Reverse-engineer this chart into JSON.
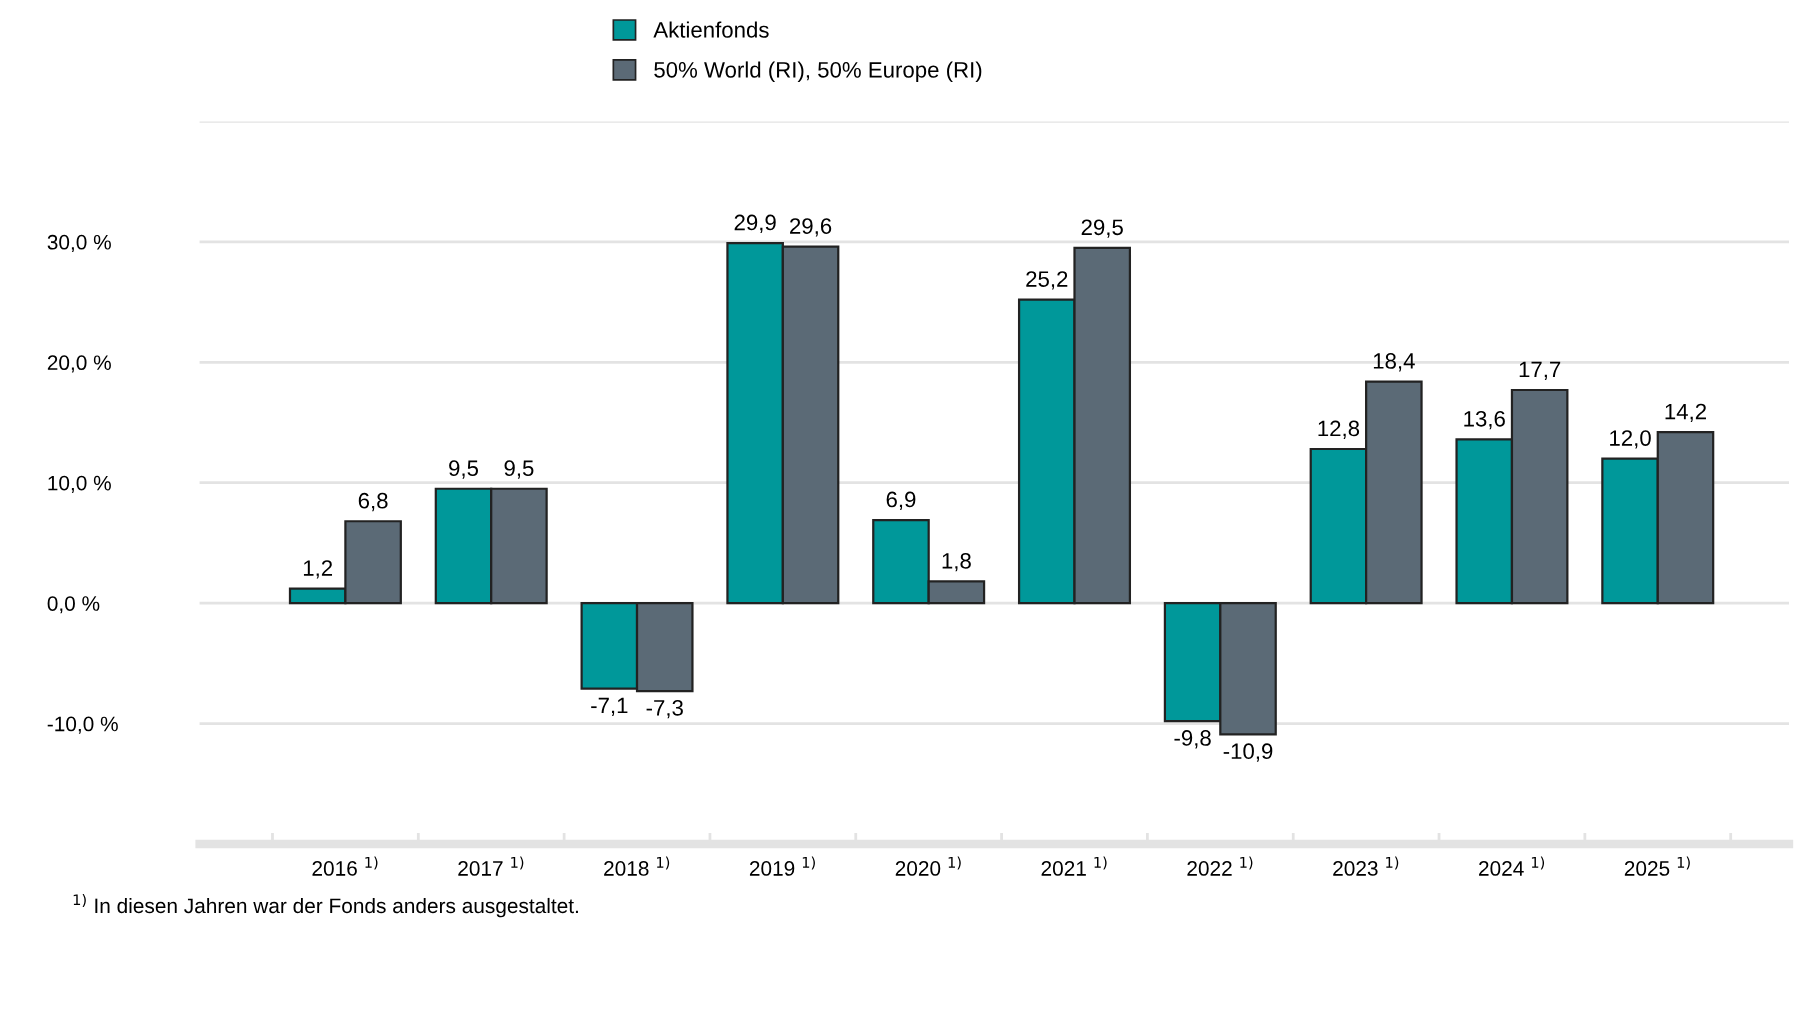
{
  "chart_data": {
    "type": "bar",
    "categories": [
      "2016 $^{1)}$",
      "2017 $^{1)}$",
      "2018 $^{1)}$",
      "2019 $^{1)}$",
      "2020 $^{1)}$",
      "2021 $^{1)}$",
      "2022 $^{1)}$",
      "2023 $^{1)}$",
      "2024 $^{1)}$",
      "2025 $^{1)}$"
    ],
    "series": [
      {
        "name": "Aktienfonds",
        "color": "#00989a",
        "values": [
          1.2,
          9.5,
          -7.1,
          29.9,
          6.9,
          25.2,
          -9.8,
          12.8,
          13.6,
          12.0
        ],
        "value_labels": [
          "1,2",
          "9,5",
          "-7,1",
          "29,9",
          "6,9",
          "25,2",
          "-9,8",
          "12,8",
          "13,6",
          "12,0"
        ]
      },
      {
        "name": "50% World (RI), 50% Europe (RI)",
        "color": "#5b6a76",
        "values": [
          6.8,
          9.5,
          -7.3,
          29.6,
          1.8,
          29.5,
          -10.9,
          18.4,
          17.7,
          14.2
        ],
        "value_labels": [
          "6,8",
          "9,5",
          "-7,3",
          "29,6",
          "1,8",
          "29,5",
          "-10,9",
          "18,4",
          "17,7",
          "14,2"
        ]
      }
    ],
    "ylim": [
      -20,
      40
    ],
    "yticks": [
      {
        "value": -20,
        "label": null
      },
      {
        "value": -10,
        "label": "-10,0 %"
      },
      {
        "value": 0,
        "label": "0,0 %"
      },
      {
        "value": 10,
        "label": "10,0 %"
      },
      {
        "value": 20,
        "label": "20,0 %"
      },
      {
        "value": 30,
        "label": "30,0 %"
      },
      {
        "value": 40,
        "label": null
      }
    ],
    "grid": "y",
    "legend": "top",
    "annotations": [
      "$^{1)}$ In diesen Jahren war der Fonds anders ausgestaltet."
    ]
  }
}
